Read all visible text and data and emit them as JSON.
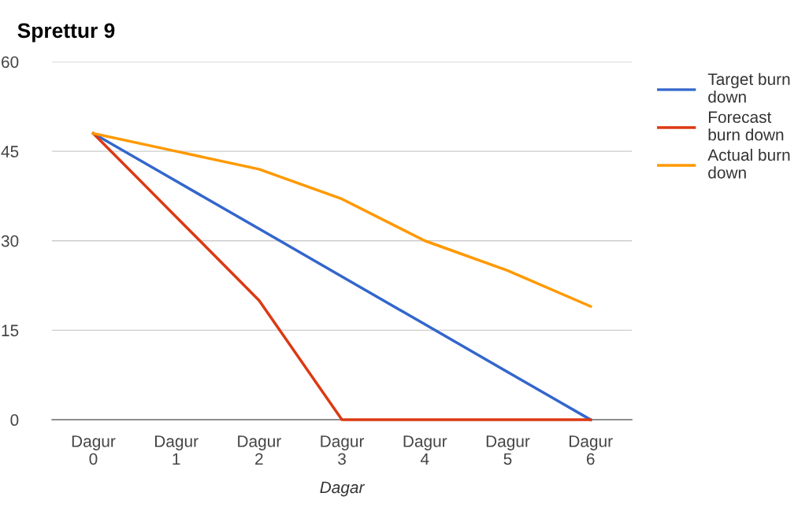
{
  "chart_data": {
    "type": "line",
    "title": "Sprettur 9",
    "xlabel": "Dagar",
    "categories": [
      "Dagur 0",
      "Dagur 1",
      "Dagur 2",
      "Dagur 3",
      "Dagur 4",
      "Dagur 5",
      "Dagur 6"
    ],
    "series": [
      {
        "name": "Target burn down",
        "color": "#3366cc",
        "values": [
          48,
          40,
          32,
          24,
          16,
          8,
          0
        ]
      },
      {
        "name": "Forecast burn down",
        "color": "#dc3912",
        "values": [
          48,
          34,
          20,
          0,
          0,
          0,
          0
        ]
      },
      {
        "name": "Actual burn down",
        "color": "#ff9900",
        "values": [
          48,
          45,
          42,
          37,
          30,
          25,
          19
        ]
      }
    ],
    "ylim": [
      0,
      60
    ],
    "yticks": [
      0,
      15,
      30,
      45,
      60
    ],
    "grid": "y",
    "legend": "right",
    "marker": "none",
    "line_style": "solid"
  }
}
